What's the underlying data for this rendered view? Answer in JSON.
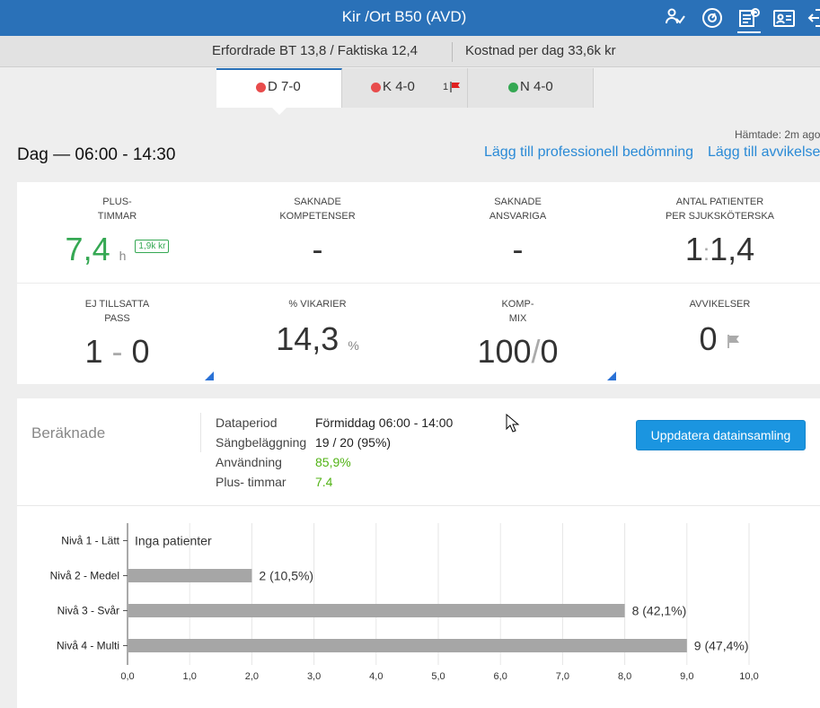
{
  "header": {
    "title": "Kir /Ort B50 (AVD)",
    "icons": [
      "patients-icon",
      "gauge-icon",
      "schedule-icon",
      "staff-card-icon",
      "logout-icon"
    ]
  },
  "summary": {
    "bt": "Erfordrade BT 13,8 / Faktiska 12,4",
    "cost": "Kostnad per dag 33,6k kr"
  },
  "tabs": [
    {
      "letter": "D",
      "label": "7-0",
      "status_color": "#e84c4c",
      "active": true
    },
    {
      "letter": "K",
      "label": "4-0",
      "status_color": "#e84c4c",
      "badge": "1",
      "flag": true
    },
    {
      "letter": "N",
      "label": "4-0",
      "status_color": "#35a853"
    }
  ],
  "fetched": "Hämtade: 2m ago",
  "period": {
    "title": "Dag — 06:00 - 14:30",
    "add_assessment": "Lägg till professionell bedömning",
    "add_deviation": "Lägg till avvikelse"
  },
  "stats": {
    "plus_hours": {
      "label1": "Plus-",
      "label2": "timmar",
      "value": "7,4",
      "unit": "h",
      "badge": "1,9k kr"
    },
    "missing_skills": {
      "label1": "Saknade",
      "label2": "kompetenser",
      "value": "-"
    },
    "missing_responsible": {
      "label1": "Saknade",
      "label2": "ansvariga",
      "value": "-"
    },
    "patients_per_nurse": {
      "label1": "Antal patienter",
      "label2": "per sjuksköterska",
      "left": "1",
      "sep": ":",
      "right": "1,4"
    },
    "unfilled_shifts": {
      "label1": "Ej tillsatta",
      "label2": "pass",
      "left": "1",
      "sep": "-",
      "right": "0"
    },
    "substitutes": {
      "label1": "% Vikarier",
      "value": "14,3",
      "unit": "%"
    },
    "comp_mix": {
      "label1": "Komp-",
      "label2": "mix",
      "left": "100",
      "sep": "/",
      "right": "0"
    },
    "deviations": {
      "label1": "Avvikelser",
      "value": "0"
    }
  },
  "calc": {
    "title": "Beräknade",
    "rows": [
      {
        "key": "Dataperiod",
        "value": "Förmiddag 06:00 - 14:00"
      },
      {
        "key": "Sängbeläggning",
        "value": "19 / 20 (95%)"
      },
      {
        "key": "Användning",
        "value": "85,9%"
      },
      {
        "key": "Plus- timmar",
        "value": "7.4"
      }
    ],
    "update_button": "Uppdatera datainsamling"
  },
  "chart_data": {
    "type": "bar",
    "orientation": "horizontal",
    "categories": [
      "Nivå 1 - Lätt",
      "Nivå 2 - Medel",
      "Nivå 3 - Svår",
      "Nivå 4 - Multi"
    ],
    "values": [
      0,
      2,
      8,
      9
    ],
    "value_labels": [
      "Inga patienter",
      "2 (10,5%)",
      "8 (42,1%)",
      "9 (47,4%)"
    ],
    "xlim": [
      0,
      10
    ],
    "x_ticks": [
      "0,0",
      "1,0",
      "2,0",
      "3,0",
      "4,0",
      "5,0",
      "6,0",
      "7,0",
      "8,0",
      "9,0",
      "10,0"
    ],
    "bar_color": "#a6a6a6",
    "grid": true
  }
}
